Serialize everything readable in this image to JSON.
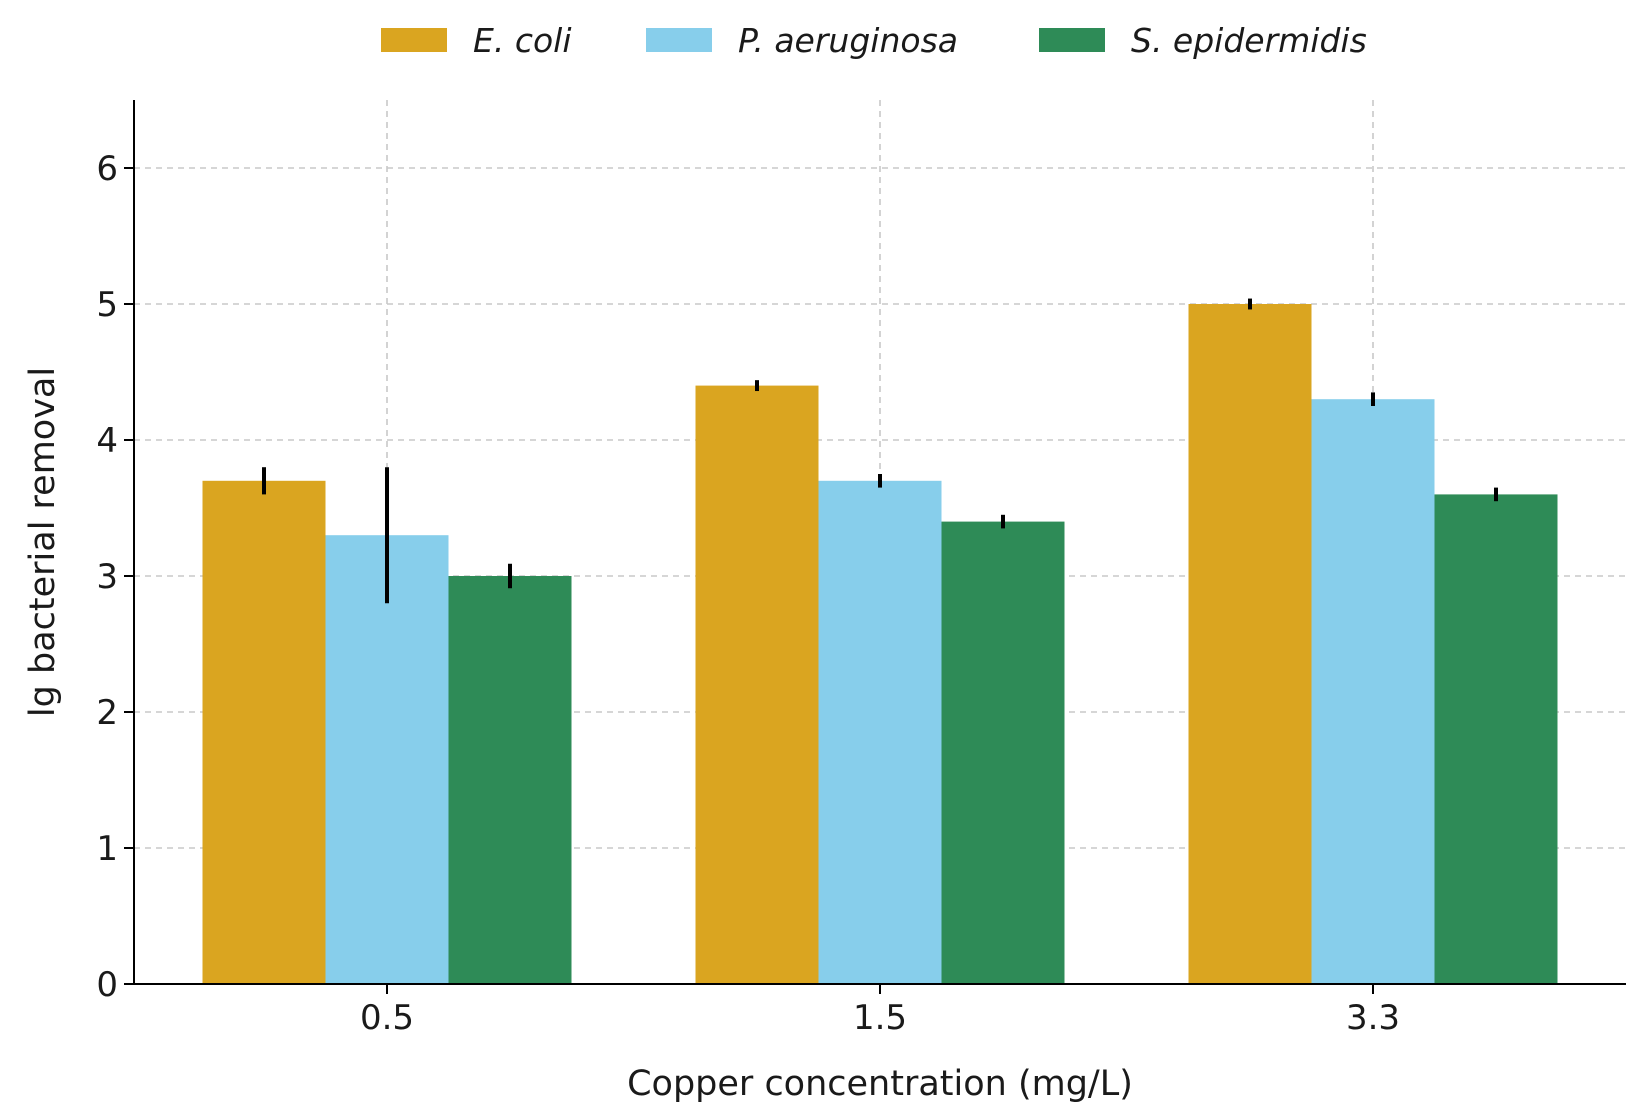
{
  "chart_data": {
    "type": "bar",
    "title": "",
    "xlabel": "Copper concentration (mg/L)",
    "ylabel": "lg bacterial removal",
    "categories": [
      "0.5",
      "1.5",
      "3.3"
    ],
    "ylim": [
      0,
      6.5
    ],
    "yticks": [
      "0",
      "1",
      "2",
      "3",
      "4",
      "5",
      "6"
    ],
    "grid": true,
    "legend_position": "top-center",
    "series": [
      {
        "name": "E. coli",
        "color": "#DAA520",
        "values": [
          3.7,
          4.4,
          5.0
        ],
        "errors": [
          0.1,
          0.04,
          0.04
        ]
      },
      {
        "name": "P. aeruginosa",
        "color": "#87CEEB",
        "values": [
          3.3,
          3.7,
          4.3
        ],
        "errors": [
          0.5,
          0.05,
          0.05
        ]
      },
      {
        "name": "S. epidermidis",
        "color": "#2E8B57",
        "values": [
          3.0,
          3.4,
          3.6
        ],
        "errors": [
          0.09,
          0.05,
          0.05
        ]
      }
    ]
  }
}
